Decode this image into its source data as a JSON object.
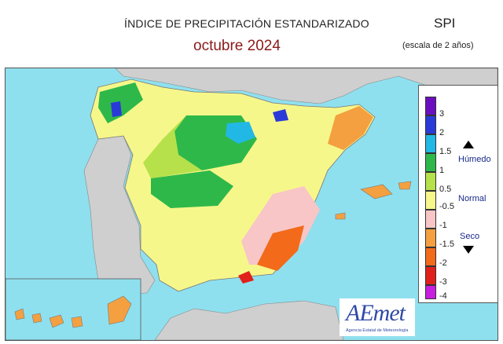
{
  "header": {
    "title": "ÍNDICE DE PRECIPITACIÓN ESTANDARIZADO",
    "period": "octubre  2024",
    "index_name": "SPI",
    "scale_note": "(escala de 2 años)"
  },
  "legend": {
    "colors": [
      "#6a0fbf",
      "#2a3ad8",
      "#22b8e6",
      "#2fb84a",
      "#b6e14a",
      "#f6f78a",
      "#f8c6c6",
      "#f4a040",
      "#f26a1a",
      "#e0201a",
      "#c81ee0"
    ],
    "ticks": [
      "3",
      "2",
      "1.5",
      "1",
      "0.5",
      "-0.5",
      "-1",
      "-1.5",
      "-2",
      "-3",
      "-4"
    ],
    "wet_label": "Húmedo",
    "normal_label": "Normal",
    "dry_label": "Seco"
  },
  "logo": {
    "name": "AEmet",
    "subtitle": "Agencia Estatal de Meteorología"
  }
}
